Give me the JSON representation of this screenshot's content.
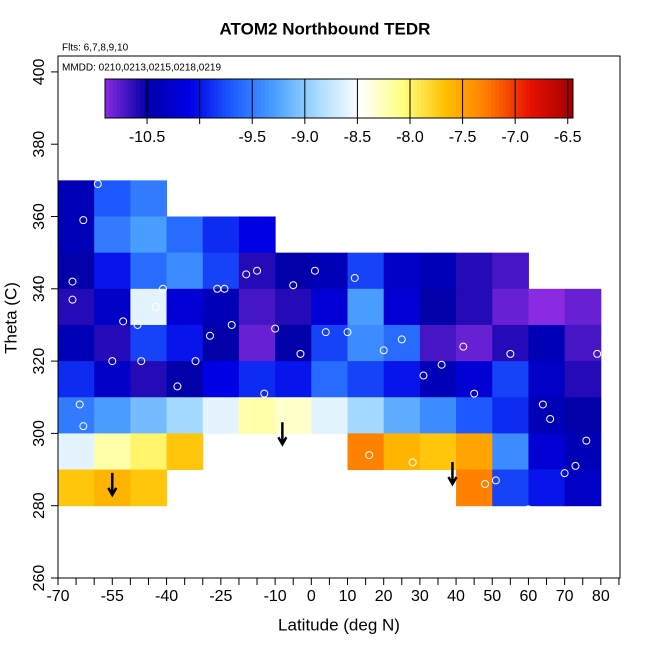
{
  "chart_data": {
    "type": "filled-contour",
    "title": "ATOM2 Northbound TEDR",
    "subtitle": "Flts: 6,7,8,9,10",
    "annotation": "MMDD: 0210,0213,0215,0218,0219",
    "x_label": "Latitude (deg N)",
    "y_label": "Theta (C)",
    "xlim": [
      -70,
      85.3
    ],
    "ylim": [
      260,
      404.4
    ],
    "xticks": [
      -70,
      -55,
      -40,
      -25,
      -10,
      0,
      10,
      20,
      30,
      40,
      50,
      60,
      70,
      80
    ],
    "xminorticks": [
      -65,
      -60,
      -50,
      -45,
      -35,
      -30,
      -20,
      -15,
      -5,
      5,
      15,
      25,
      35,
      45,
      55,
      65,
      75,
      85
    ],
    "yticks": [
      260,
      280,
      300,
      320,
      340,
      360,
      380,
      400
    ],
    "x_edges": [
      -70,
      -60,
      -50,
      -40,
      -30,
      -20,
      -10,
      0,
      10,
      20,
      30,
      40,
      50,
      60,
      70,
      80
    ],
    "y_edges": [
      370,
      360,
      350,
      340,
      330,
      320,
      310,
      300,
      290,
      280
    ],
    "z": [
      [
        -10.4,
        -9.7,
        -9.5,
        null,
        null,
        null,
        null,
        null,
        null,
        null,
        null,
        null,
        null,
        null,
        null
      ],
      [
        -10.4,
        -9.5,
        -9.3,
        -9.6,
        -9.9,
        -10.1,
        null,
        null,
        null,
        null,
        null,
        null,
        null,
        null,
        null
      ],
      [
        -10.5,
        -10.0,
        -9.6,
        -9.4,
        -9.8,
        -10.6,
        -10.5,
        -10.4,
        -9.8,
        -10.3,
        -10.4,
        -10.6,
        -10.7,
        null,
        null
      ],
      [
        -10.6,
        -10.3,
        -8.6,
        -10.2,
        -10.4,
        -10.7,
        -10.6,
        -10.2,
        -9.3,
        -10.2,
        -10.5,
        -10.6,
        -10.8,
        -10.9,
        -10.8
      ],
      [
        -10.4,
        -10.6,
        -9.8,
        -10.0,
        -10.5,
        -10.8,
        -10.5,
        -9.8,
        -9.4,
        -9.6,
        -10.7,
        -10.8,
        -10.6,
        -10.4,
        -10.7
      ],
      [
        -9.9,
        -10.3,
        -10.6,
        -10.5,
        -10.1,
        -9.9,
        -10.0,
        -9.6,
        -9.8,
        -10.0,
        -10.4,
        -10.2,
        -9.8,
        -10.3,
        -10.6
      ],
      [
        -9.5,
        -9.3,
        -9.1,
        -8.9,
        -8.6,
        -8.2,
        -8.3,
        -8.6,
        -8.9,
        -9.2,
        -9.4,
        -9.7,
        -9.9,
        -10.4,
        -10.5
      ],
      [
        -8.6,
        -8.2,
        -8.0,
        -7.7,
        null,
        null,
        null,
        null,
        -7.3,
        -7.6,
        -7.7,
        -7.5,
        -9.4,
        -10.2,
        -10.4
      ],
      [
        -7.7,
        -7.6,
        -7.7,
        null,
        null,
        null,
        null,
        null,
        null,
        null,
        null,
        -7.3,
        -9.8,
        -10.0,
        -10.3
      ]
    ],
    "clim": [
      -10.9,
      -6.45
    ],
    "colormap": [
      "#8a2be2",
      "#0000a8",
      "#0000e6",
      "#1e5cff",
      "#4aa0ff",
      "#a8dcff",
      "#ffffff",
      "#ffff80",
      "#ffc000",
      "#ff7a00",
      "#e81000",
      "#a00000"
    ],
    "cticks": [
      -10.5,
      -9.5,
      {
        "value": -9.0,
        "label": "-9.0"
      },
      -8.5,
      {
        "value": -8.0,
        "label": "-8.0"
      },
      -7.5,
      {
        "value": -7.0,
        "label": "-7.0"
      },
      -6.5
    ],
    "cminorticks": [
      -10
    ],
    "points": {
      "x": [
        -59,
        -63,
        -66,
        -66,
        -64,
        -63,
        -55,
        -52,
        -48,
        -47,
        -43,
        -41,
        -37,
        -32,
        -28,
        -26,
        -24,
        -22,
        -18,
        -15,
        -13,
        -10,
        -5,
        -3,
        1,
        4,
        10,
        12,
        16,
        20,
        25,
        28,
        31,
        36,
        42,
        45,
        48,
        51,
        55,
        60,
        64,
        66,
        70,
        73,
        76,
        79
      ],
      "y": [
        369,
        359,
        342,
        337,
        308,
        302,
        320,
        331,
        330,
        320,
        335,
        340,
        313,
        320,
        327,
        340,
        340,
        330,
        344,
        345,
        311,
        329,
        341,
        322,
        345,
        328,
        328,
        343,
        294,
        323,
        326,
        292,
        316,
        319,
        324,
        311,
        286,
        287,
        322,
        279,
        308,
        304,
        289,
        291,
        298,
        322
      ]
    },
    "arrows": {
      "x": [
        -55,
        -8,
        39
      ],
      "y": [
        283,
        297,
        286
      ]
    }
  }
}
